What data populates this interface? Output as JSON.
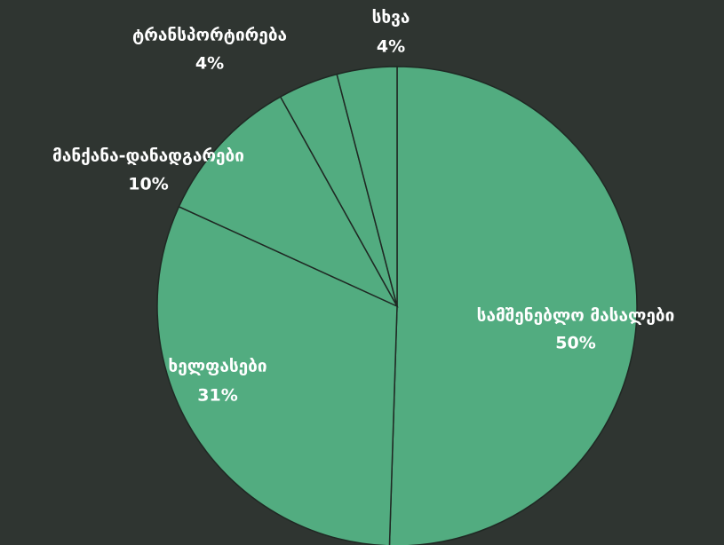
{
  "chart_data": {
    "type": "pie",
    "categories": [
      "სამშენებლო მასალები",
      "ხელფასები",
      "მანქანა-დანადგარები",
      "ტრანსპორტირება",
      "სხვა"
    ],
    "values": [
      50,
      31,
      10,
      4,
      4
    ],
    "value_labels": [
      "50%",
      "31%",
      "10%",
      "4%",
      "4%"
    ],
    "color": "#52ac80"
  }
}
